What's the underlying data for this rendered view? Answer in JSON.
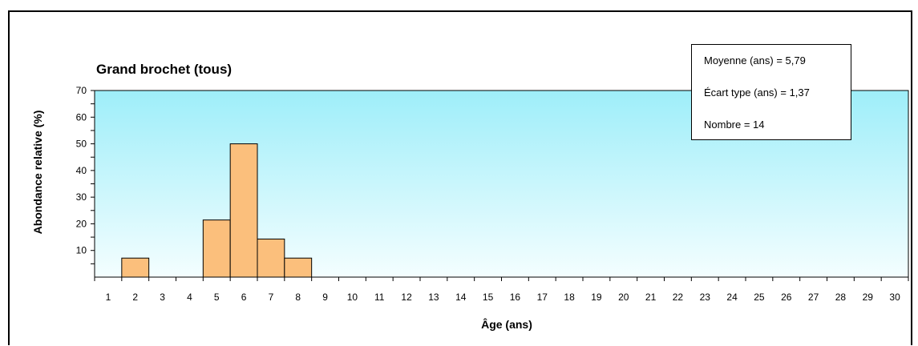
{
  "chart_data": {
    "type": "bar",
    "title": "Grand brochet (tous)",
    "xlabel": "Âge (ans)",
    "ylabel": "Abondance relative (%)",
    "categories": [
      "1",
      "2",
      "3",
      "4",
      "5",
      "6",
      "7",
      "8",
      "9",
      "10",
      "11",
      "12",
      "13",
      "14",
      "15",
      "16",
      "17",
      "18",
      "19",
      "20",
      "21",
      "22",
      "23",
      "24",
      "25",
      "26",
      "27",
      "28",
      "29",
      "30"
    ],
    "values": [
      0,
      7.14,
      0,
      0,
      21.43,
      50,
      14.29,
      7.14,
      0,
      0,
      0,
      0,
      0,
      0,
      0,
      0,
      0,
      0,
      0,
      0,
      0,
      0,
      0,
      0,
      0,
      0,
      0,
      0,
      0,
      0
    ],
    "ylim": [
      0,
      70
    ],
    "yticks": [
      10,
      20,
      30,
      40,
      50,
      60,
      70
    ],
    "grid": false,
    "bar_color": "#fbbf7c",
    "plot_background_top": "#9eeef9",
    "plot_background_bottom": "#f4feff"
  },
  "stats": {
    "mean": "Moyenne (ans) = 5,79",
    "std": "Écart type (ans) = 1,37",
    "count": "Nombre = 14"
  }
}
